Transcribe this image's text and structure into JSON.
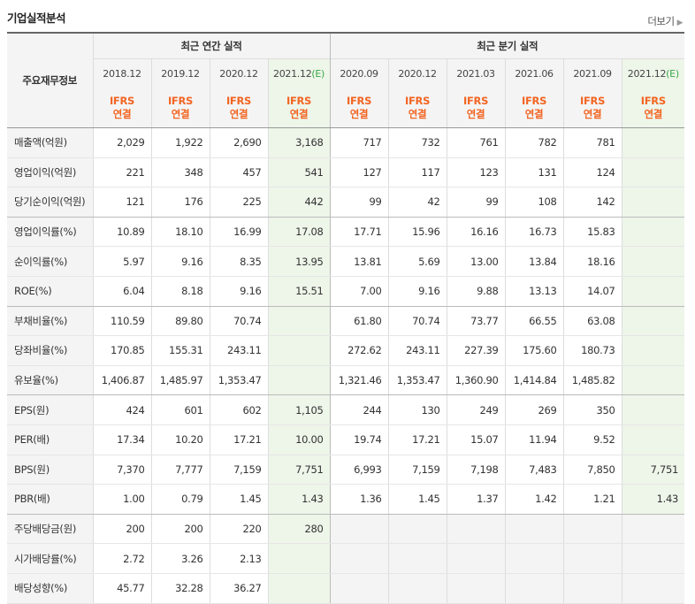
{
  "title": "기업실적분석",
  "more_label": "더보기",
  "header": {
    "corner": "주요재무정보",
    "annual": "최근 연간 실적",
    "quarterly": "최근 분기 실적",
    "annual_periods": [
      "2018.12",
      "2019.12",
      "2020.12",
      "2021.12"
    ],
    "quarter_periods": [
      "2020.09",
      "2020.12",
      "2021.03",
      "2021.06",
      "2021.09",
      "2021.12"
    ],
    "estimate_mark": "(E)",
    "ifrs": "IFRS",
    "basis": "연결"
  },
  "rows": [
    {
      "label": "매출액(억원)",
      "values": [
        "2,029",
        "1,922",
        "2,690",
        "3,168",
        "717",
        "732",
        "761",
        "782",
        "781",
        ""
      ]
    },
    {
      "label": "영업이익(억원)",
      "values": [
        "221",
        "348",
        "457",
        "541",
        "127",
        "117",
        "123",
        "131",
        "124",
        ""
      ]
    },
    {
      "label": "당기순이익(억원)",
      "values": [
        "121",
        "176",
        "225",
        "442",
        "99",
        "42",
        "99",
        "108",
        "142",
        ""
      ]
    },
    {
      "label": "영업이익률(%)",
      "values": [
        "10.89",
        "18.10",
        "16.99",
        "17.08",
        "17.71",
        "15.96",
        "16.16",
        "16.73",
        "15.83",
        ""
      ]
    },
    {
      "label": "순이익률(%)",
      "values": [
        "5.97",
        "9.16",
        "8.35",
        "13.95",
        "13.81",
        "5.69",
        "13.00",
        "13.84",
        "18.16",
        ""
      ]
    },
    {
      "label": "ROE(%)",
      "values": [
        "6.04",
        "8.18",
        "9.16",
        "15.51",
        "7.00",
        "9.16",
        "9.88",
        "13.13",
        "14.07",
        ""
      ]
    },
    {
      "label": "부채비율(%)",
      "values": [
        "110.59",
        "89.80",
        "70.74",
        "",
        "61.80",
        "70.74",
        "73.77",
        "66.55",
        "63.08",
        ""
      ]
    },
    {
      "label": "당좌비율(%)",
      "values": [
        "170.85",
        "155.31",
        "243.11",
        "",
        "272.62",
        "243.11",
        "227.39",
        "175.60",
        "180.73",
        ""
      ]
    },
    {
      "label": "유보율(%)",
      "values": [
        "1,406.87",
        "1,485.97",
        "1,353.47",
        "",
        "1,321.46",
        "1,353.47",
        "1,360.90",
        "1,414.84",
        "1,485.82",
        ""
      ]
    },
    {
      "label": "EPS(원)",
      "values": [
        "424",
        "601",
        "602",
        "1,105",
        "244",
        "130",
        "249",
        "269",
        "350",
        ""
      ]
    },
    {
      "label": "PER(배)",
      "values": [
        "17.34",
        "10.20",
        "17.21",
        "10.00",
        "19.74",
        "17.21",
        "15.07",
        "11.94",
        "9.52",
        ""
      ]
    },
    {
      "label": "BPS(원)",
      "values": [
        "7,370",
        "7,777",
        "7,159",
        "7,751",
        "6,993",
        "7,159",
        "7,198",
        "7,483",
        "7,850",
        "7,751"
      ]
    },
    {
      "label": "PBR(배)",
      "values": [
        "1.00",
        "0.79",
        "1.45",
        "1.43",
        "1.36",
        "1.45",
        "1.37",
        "1.42",
        "1.21",
        "1.43"
      ]
    },
    {
      "label": "주당배당금(원)",
      "values": [
        "200",
        "200",
        "220",
        "280",
        "",
        "",
        "",
        "",
        "",
        ""
      ]
    },
    {
      "label": "시가배당률(%)",
      "values": [
        "2.72",
        "3.26",
        "2.13",
        "",
        "",
        "",
        "",
        "",
        "",
        ""
      ]
    },
    {
      "label": "배당성향(%)",
      "values": [
        "45.77",
        "32.28",
        "36.27",
        "",
        "",
        "",
        "",
        "",
        "",
        ""
      ]
    }
  ],
  "colors": {
    "ifrs_orange": "#f26522",
    "estimate_green": "#38a848",
    "estimate_bg": "#eef5e9",
    "header_bg": "#f4f4f4"
  }
}
